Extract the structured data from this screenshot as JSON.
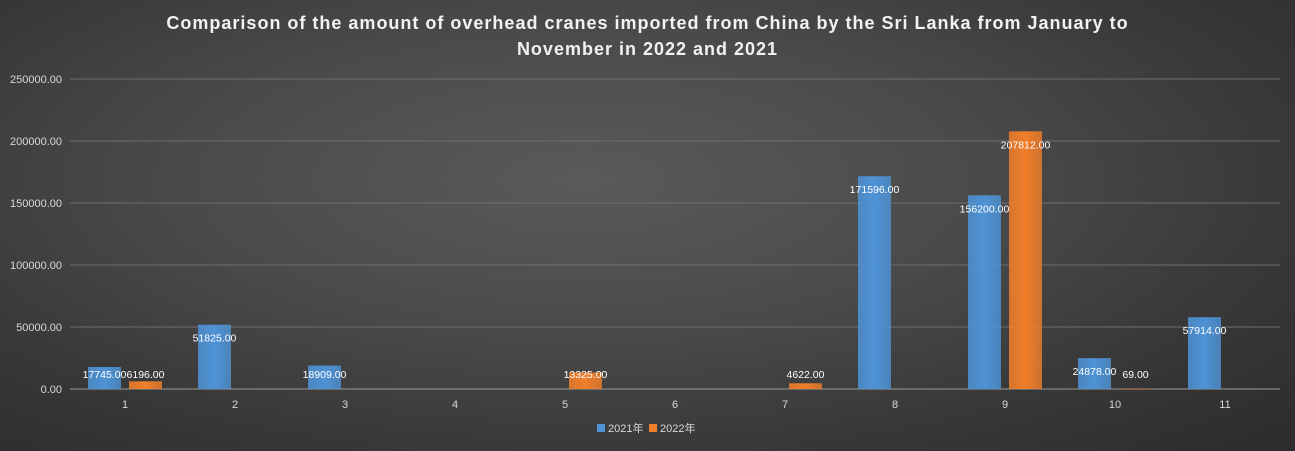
{
  "chart_data": {
    "type": "bar",
    "title_lines": [
      "Comparison of the amount of overhead cranes imported from China by the Sri Lanka from January to",
      "November in 2022 and 2021"
    ],
    "categories": [
      "1",
      "2",
      "3",
      "4",
      "5",
      "6",
      "7",
      "8",
      "9",
      "10",
      "11"
    ],
    "series": [
      {
        "name": "2021年",
        "color": "#4e93d6",
        "values": [
          17745,
          51825,
          18909,
          null,
          null,
          null,
          null,
          171596,
          156200,
          24878,
          57914
        ],
        "labels": [
          "17745.00",
          "51825.00",
          "18909.00",
          "",
          "",
          "",
          "",
          "171596.00",
          "156200.00",
          "24878.00",
          "57914.00"
        ]
      },
      {
        "name": "2022年",
        "color": "#f07e2a",
        "values": [
          6196,
          null,
          null,
          null,
          13325,
          null,
          4622,
          null,
          207812,
          69,
          null
        ],
        "labels": [
          "6196.00",
          "",
          "",
          "",
          "13325.00",
          "",
          "4622.00",
          "",
          "207812.00",
          "69.00",
          ""
        ]
      }
    ],
    "yticks": [
      "0.00",
      "50000.00",
      "100000.00",
      "150000.00",
      "200000.00",
      "250000.00"
    ],
    "ylim": [
      0,
      250000
    ],
    "grid": true,
    "legend_position": "bottom-center"
  }
}
